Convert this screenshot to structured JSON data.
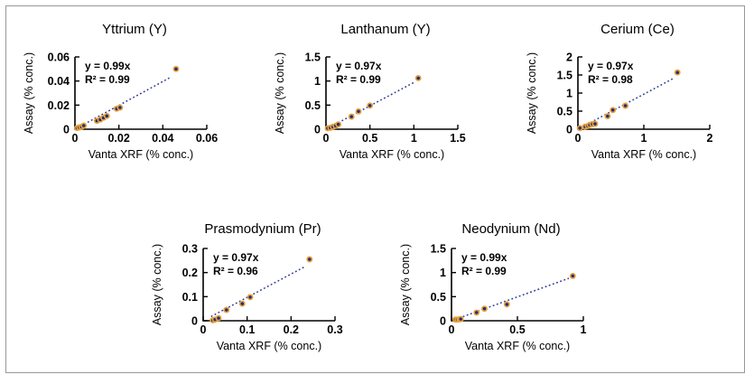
{
  "figure": {
    "border_color": "#999999",
    "background": "#ffffff"
  },
  "style": {
    "marker_fill": "#1f2d7c",
    "marker_stroke": "#e9a23b",
    "trend_color": "#2b3990",
    "axis_color": "#000000",
    "text_color": "#000000"
  },
  "chart_data": [
    {
      "type": "scatter",
      "title": "Yttrium (Y)",
      "equation": "y = 0.99x",
      "r_squared": "R² = 0.99",
      "xlabel": "Vanta XRF (% conc.)",
      "ylabel": "Assay (% conc.)",
      "xlim": [
        0,
        0.06
      ],
      "ylim": [
        0,
        0.06
      ],
      "x_ticks": [
        0,
        0.02,
        0.04,
        0.06
      ],
      "x_tick_labels": [
        "0",
        "0.02",
        "0.04",
        "0.06"
      ],
      "y_ticks": [
        0,
        0.02,
        0.04,
        0.06
      ],
      "y_tick_labels": [
        "0",
        "0.02",
        "0.04",
        "0.06"
      ],
      "grid": false,
      "legend": false,
      "points": [
        [
          0.001,
          0.001
        ],
        [
          0.002,
          0.0015
        ],
        [
          0.003,
          0.002
        ],
        [
          0.004,
          0.003
        ],
        [
          0.01,
          0.007
        ],
        [
          0.0115,
          0.008
        ],
        [
          0.013,
          0.0095
        ],
        [
          0.0145,
          0.011
        ],
        [
          0.019,
          0.017
        ],
        [
          0.0205,
          0.018
        ],
        [
          0.046,
          0.05
        ]
      ],
      "trend": {
        "slope": 0.99,
        "x_start": 0.001,
        "x_end": 0.0435
      }
    },
    {
      "type": "scatter",
      "title": "Lanthanum (Y)",
      "equation": "y = 0.97x",
      "r_squared": "R² = 0.99",
      "xlabel": "Vanta XRF (% conc.)",
      "ylabel": "Assay (% conc.)",
      "xlim": [
        0,
        1.5
      ],
      "ylim": [
        0,
        1.5
      ],
      "x_ticks": [
        0,
        0.5,
        1,
        1.5
      ],
      "x_tick_labels": [
        "0",
        "0.5",
        "1",
        "1.5"
      ],
      "y_ticks": [
        0,
        0.5,
        1,
        1.5
      ],
      "y_tick_labels": [
        "0",
        "0.5",
        "1",
        "1.5"
      ],
      "grid": false,
      "legend": false,
      "points": [
        [
          0.02,
          0.02
        ],
        [
          0.05,
          0.03
        ],
        [
          0.08,
          0.05
        ],
        [
          0.11,
          0.07
        ],
        [
          0.14,
          0.1
        ],
        [
          0.29,
          0.26
        ],
        [
          0.37,
          0.37
        ],
        [
          0.5,
          0.49
        ],
        [
          1.05,
          1.06
        ]
      ],
      "trend": {
        "slope": 0.97,
        "x_start": 0.02,
        "x_end": 1.0
      }
    },
    {
      "type": "scatter",
      "title": "Cerium (Ce)",
      "equation": "y = 0.97x",
      "r_squared": "R² = 0.98",
      "xlabel": "Vanta XRF (% conc.)",
      "ylabel": "Assay (% conc.)",
      "xlim": [
        0,
        2
      ],
      "ylim": [
        0,
        2
      ],
      "x_ticks": [
        0,
        1,
        2
      ],
      "x_tick_labels": [
        "0",
        "1",
        "2"
      ],
      "y_ticks": [
        0,
        0.5,
        1,
        1.5,
        2
      ],
      "y_tick_labels": [
        "0",
        "0.5",
        "1",
        "1.5",
        "2"
      ],
      "grid": false,
      "legend": false,
      "points": [
        [
          0.03,
          0.03
        ],
        [
          0.11,
          0.07
        ],
        [
          0.15,
          0.09
        ],
        [
          0.18,
          0.12
        ],
        [
          0.22,
          0.14
        ],
        [
          0.26,
          0.15
        ],
        [
          0.45,
          0.36
        ],
        [
          0.53,
          0.53
        ],
        [
          0.72,
          0.65
        ],
        [
          1.51,
          1.57
        ]
      ],
      "trend": {
        "slope": 0.97,
        "x_start": 0.03,
        "x_end": 1.45
      }
    },
    {
      "type": "scatter",
      "title": "Prasmodynium (Pr)",
      "equation": "y = 0.97x",
      "r_squared": "R² = 0.96",
      "xlabel": "Vanta XRF (% conc.)",
      "ylabel": "Assay (% conc.)",
      "xlim": [
        0,
        0.3
      ],
      "ylim": [
        0,
        0.3
      ],
      "x_ticks": [
        0,
        0.1,
        0.2,
        0.3
      ],
      "x_tick_labels": [
        "0",
        "0.1",
        "0.2",
        "0.3"
      ],
      "y_ticks": [
        0,
        0.1,
        0.2,
        0.3
      ],
      "y_tick_labels": [
        "0",
        "0.1",
        "0.2",
        "0.3"
      ],
      "grid": false,
      "legend": false,
      "points": [
        [
          0.022,
          0.002
        ],
        [
          0.027,
          0.005
        ],
        [
          0.035,
          0.011
        ],
        [
          0.053,
          0.045
        ],
        [
          0.089,
          0.071
        ],
        [
          0.107,
          0.098
        ],
        [
          0.242,
          0.255
        ]
      ],
      "trend": {
        "slope": 0.97,
        "x_start": 0.018,
        "x_end": 0.232
      }
    },
    {
      "type": "scatter",
      "title": "Neodynium (Nd)",
      "equation": "y = 0.99x",
      "r_squared": "R² = 0.99",
      "xlabel": "Vanta XRF (% conc.)",
      "ylabel": "Assay (% conc.)",
      "xlim": [
        0,
        1
      ],
      "ylim": [
        0,
        1.5
      ],
      "x_ticks": [
        0,
        0.5,
        1
      ],
      "x_tick_labels": [
        "0",
        "0.5",
        "1"
      ],
      "y_ticks": [
        0,
        0.5,
        1,
        1.5
      ],
      "y_tick_labels": [
        "0",
        "0.5",
        "1",
        "1.5"
      ],
      "grid": false,
      "legend": false,
      "points": [
        [
          0.03,
          0.025
        ],
        [
          0.045,
          0.025
        ],
        [
          0.06,
          0.03
        ],
        [
          0.07,
          0.035
        ],
        [
          0.19,
          0.17
        ],
        [
          0.25,
          0.25
        ],
        [
          0.42,
          0.34
        ],
        [
          0.92,
          0.93
        ]
      ],
      "trend": {
        "slope": 0.99,
        "x_start": 0.03,
        "x_end": 0.89
      }
    }
  ]
}
